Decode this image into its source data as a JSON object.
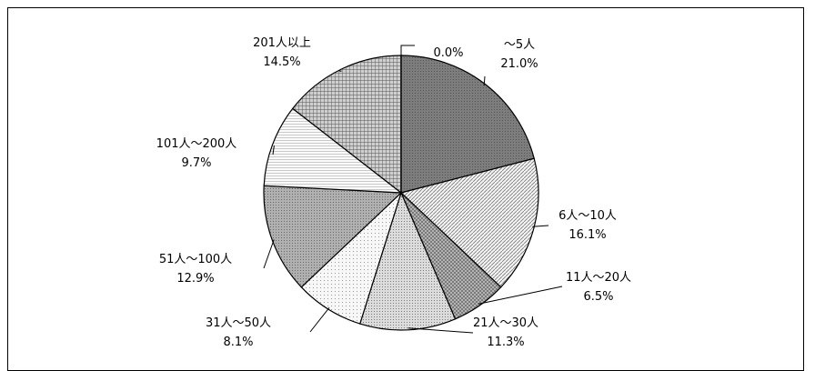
{
  "chart_data": {
    "type": "pie",
    "title": "",
    "categories": [
      "〜5人",
      "6人〜10人",
      "11人〜20人",
      "21人〜30人",
      "31人〜50人",
      "51人〜100人",
      "101人〜200人",
      "201人以上",
      ""
    ],
    "values": [
      21.0,
      16.1,
      6.5,
      11.3,
      8.1,
      12.9,
      9.7,
      14.5,
      0.0
    ],
    "percent_labels": [
      "21.0%",
      "16.1%",
      "6.5%",
      "11.3%",
      "8.1%",
      "12.9%",
      "9.7%",
      "14.5%",
      "0.0%"
    ],
    "start_angle": "12 o'clock",
    "direction": "clockwise",
    "legend": "none",
    "colors": {
      "edge": "#000000",
      "fills": [
        "#7a7a7a",
        "#d8d8d8",
        "#9a9a9a",
        "#bdbdbd",
        "#ececec",
        "#a8a8a8",
        "#f2f2f2",
        "#8c8c8c",
        "#ffffff"
      ]
    }
  }
}
